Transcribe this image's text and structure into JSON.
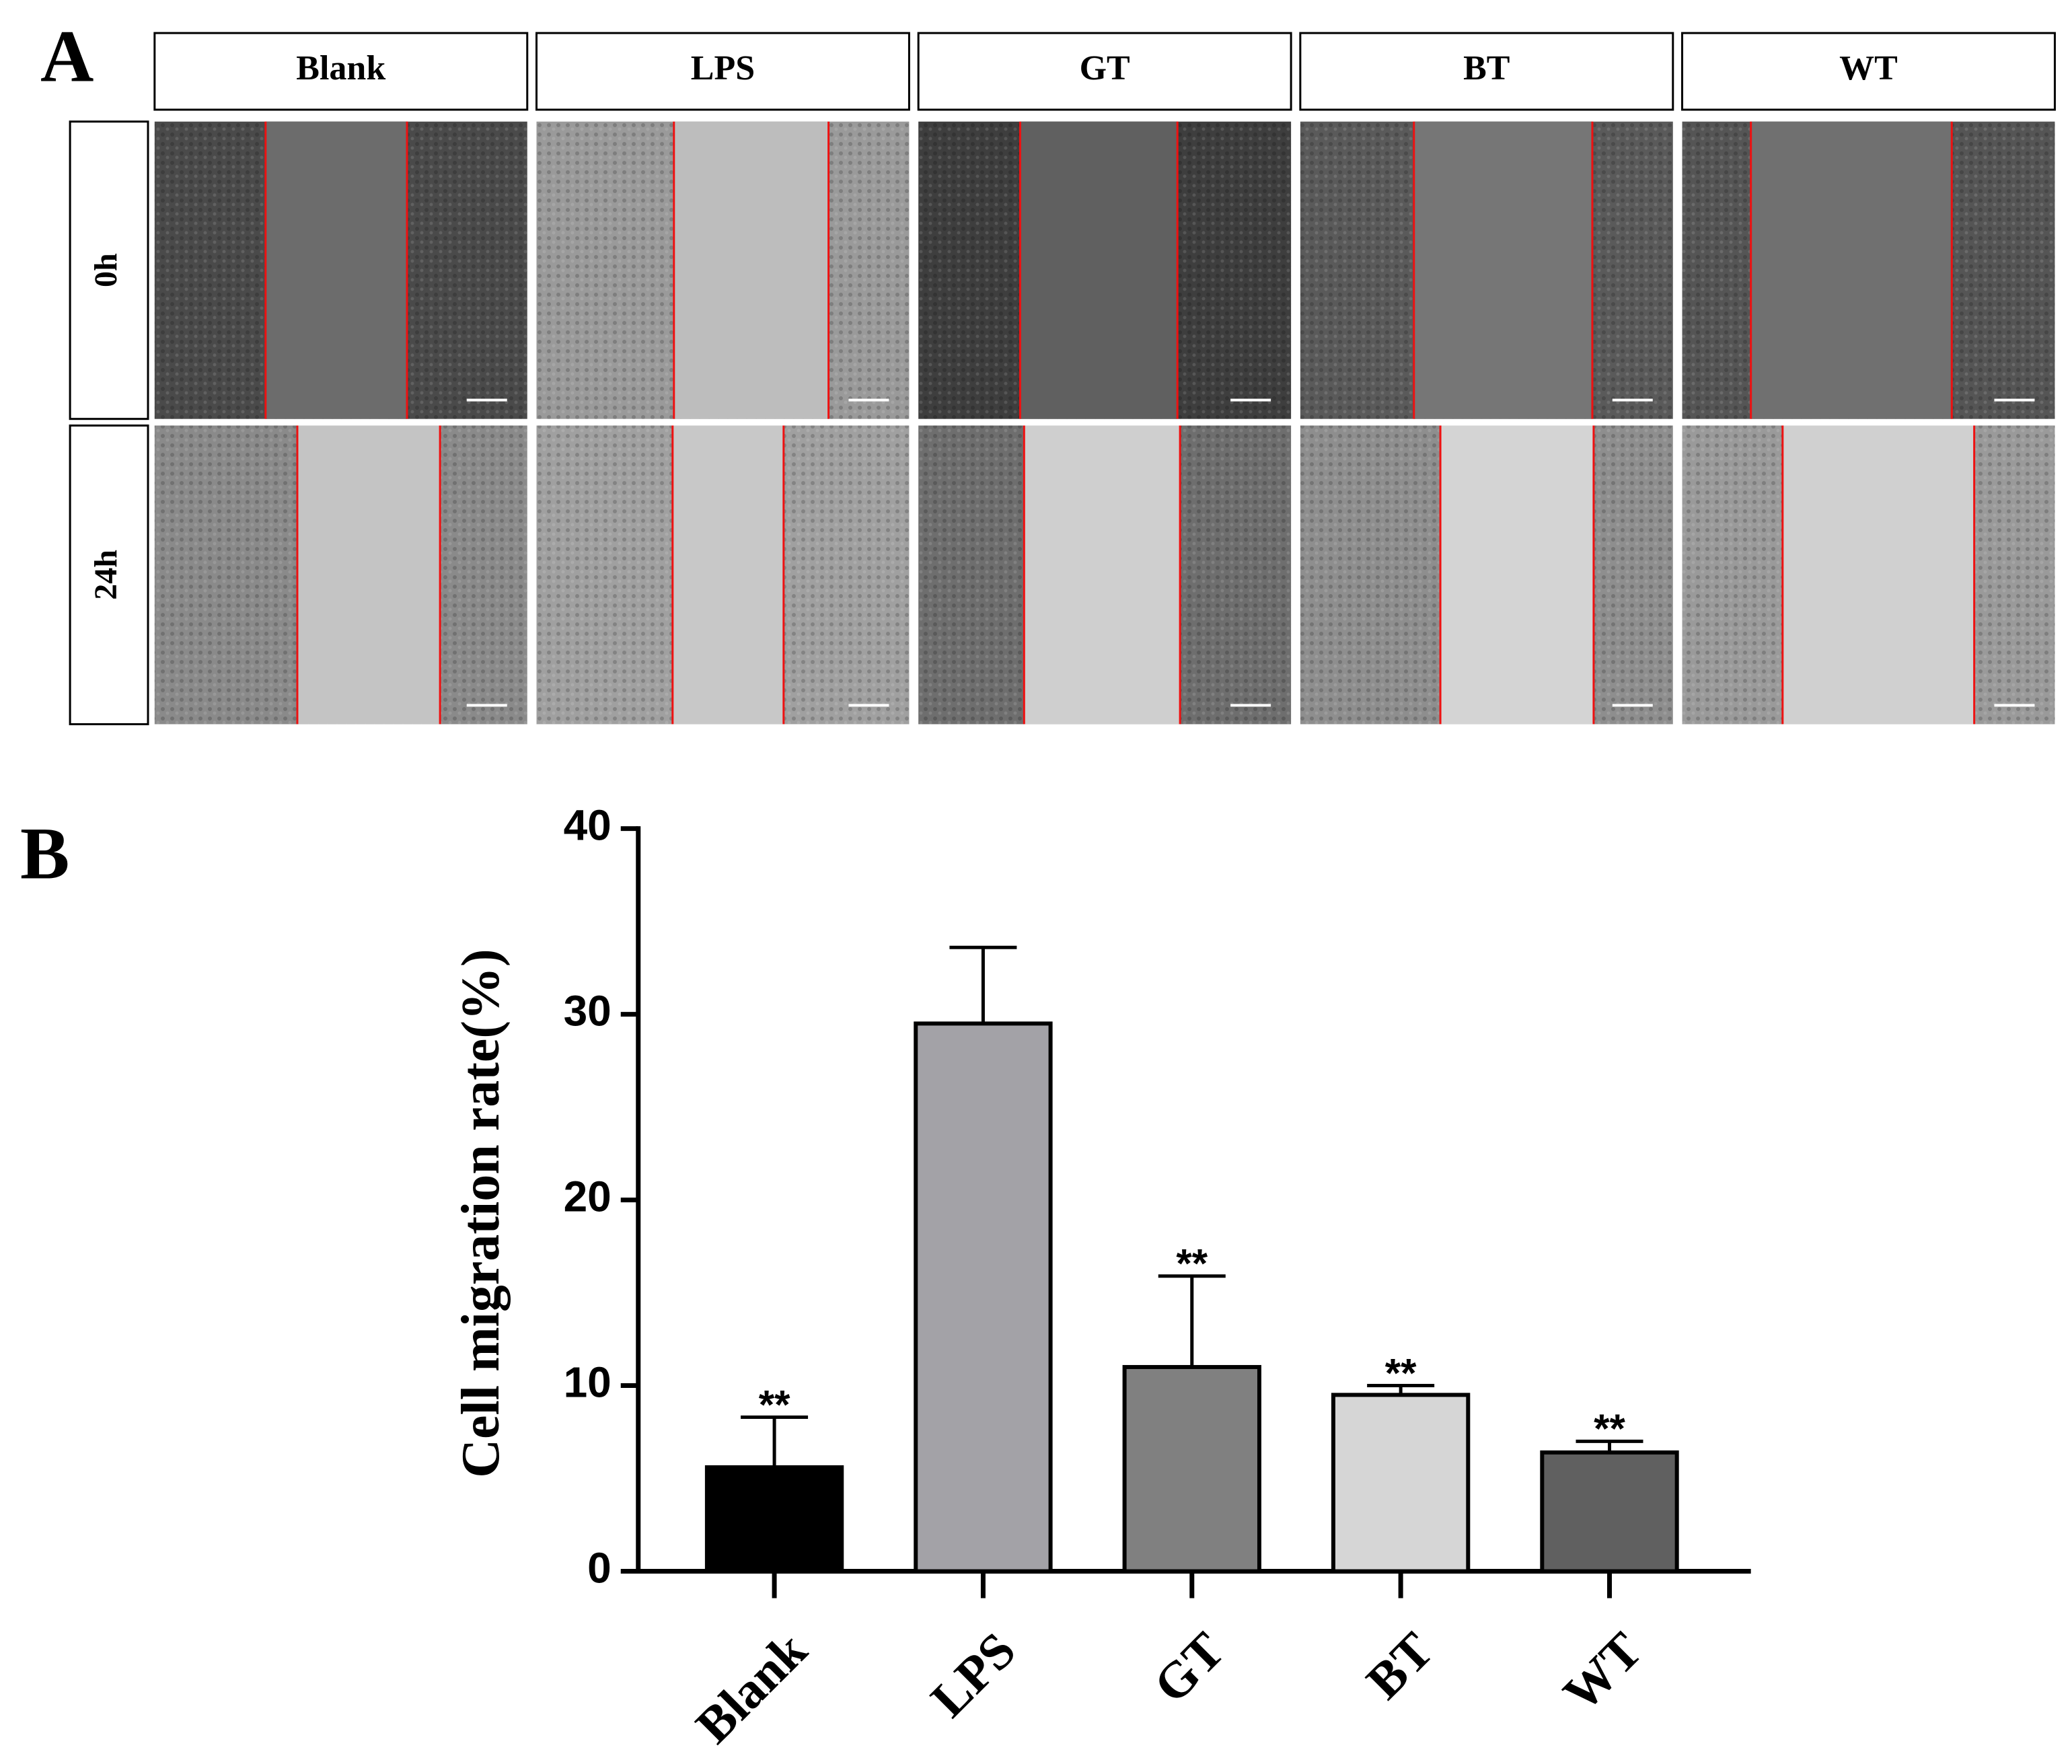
{
  "panel_a": {
    "label": "A",
    "columns": [
      "Blank",
      "LPS",
      "GT",
      "BT",
      "WT"
    ],
    "rows": [
      "0h",
      "24h"
    ]
  },
  "chart_data": {
    "panel_label": "B",
    "type": "bar",
    "y_label": "Cell migration rate(%)",
    "categories": [
      "Blank",
      "LPS",
      "GT",
      "BT",
      "WT"
    ],
    "values": [
      5.6,
      29.5,
      11.0,
      9.5,
      6.4
    ],
    "errors": [
      2.7,
      4.1,
      4.9,
      0.5,
      0.6
    ],
    "colors": [
      "#000000",
      "#a3a2a7",
      "#808080",
      "#d6d6d6",
      "#606060"
    ],
    "significance": [
      "**",
      null,
      "**",
      "**",
      "**"
    ],
    "ylim": [
      0,
      40
    ],
    "yticks": [
      0,
      10,
      20,
      30,
      40
    ]
  }
}
